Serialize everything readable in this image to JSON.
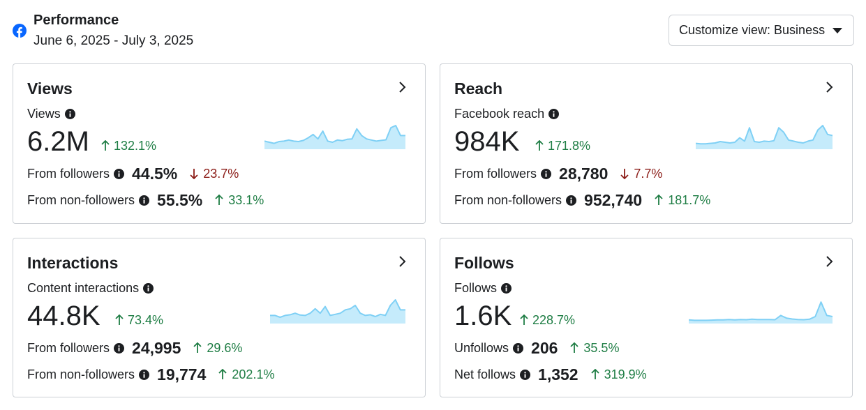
{
  "header": {
    "title": "Performance",
    "date_range": "June 6, 2025 - July 3, 2025",
    "customize_label": "Customize view: Business"
  },
  "colors": {
    "brand": "#0866ff",
    "up": "#1e7d44",
    "down": "#8c1d18",
    "spark_line": "#7fd0f5",
    "spark_fill": "#c5ebfb"
  },
  "cards": {
    "views": {
      "title": "Views",
      "metric_label": "Views",
      "value": "6.2M",
      "change": "132.1%",
      "change_dir": "up",
      "rows": [
        {
          "label": "From followers",
          "value": "44.5%",
          "change": "23.7%",
          "dir": "down"
        },
        {
          "label": "From non-followers",
          "value": "55.5%",
          "change": "33.1%",
          "dir": "up"
        }
      ],
      "sparkline": [
        0.3,
        0.25,
        0.2,
        0.28,
        0.3,
        0.35,
        0.3,
        0.28,
        0.33,
        0.45,
        0.6,
        0.4,
        0.75,
        0.3,
        0.25,
        0.35,
        0.32,
        0.38,
        0.4,
        0.85,
        0.55,
        0.4,
        0.35,
        0.3,
        0.33,
        0.36,
        0.9,
        1.0,
        0.55,
        0.55
      ]
    },
    "reach": {
      "title": "Reach",
      "metric_label": "Facebook reach",
      "value": "984K",
      "change": "171.8%",
      "change_dir": "up",
      "rows": [
        {
          "label": "From followers",
          "value": "28,780",
          "change": "7.7%",
          "dir": "down"
        },
        {
          "label": "From non-followers",
          "value": "952,740",
          "change": "181.7%",
          "dir": "up"
        }
      ],
      "sparkline": [
        0.2,
        0.18,
        0.18,
        0.2,
        0.22,
        0.28,
        0.25,
        0.22,
        0.25,
        0.45,
        0.3,
        0.9,
        0.28,
        0.25,
        0.3,
        0.28,
        0.32,
        0.9,
        0.7,
        0.35,
        0.3,
        0.25,
        0.22,
        0.3,
        0.35,
        0.8,
        1.0,
        0.6,
        0.55
      ]
    },
    "interactions": {
      "title": "Interactions",
      "metric_label": "Content interactions",
      "value": "44.8K",
      "change": "73.4%",
      "change_dir": "up",
      "rows": [
        {
          "label": "From followers",
          "value": "24,995",
          "change": "29.6%",
          "dir": "up"
        },
        {
          "label": "From non-followers",
          "value": "19,774",
          "change": "202.1%",
          "dir": "up"
        }
      ],
      "sparkline": [
        0.3,
        0.3,
        0.22,
        0.3,
        0.33,
        0.4,
        0.32,
        0.3,
        0.4,
        0.6,
        0.4,
        0.7,
        0.3,
        0.35,
        0.4,
        0.55,
        0.6,
        0.75,
        0.4,
        0.3,
        0.33,
        0.25,
        0.35,
        0.3,
        0.75,
        1.0,
        0.55,
        0.55
      ]
    },
    "follows": {
      "title": "Follows",
      "metric_label": "Follows",
      "value": "1.6K",
      "change": "228.7%",
      "change_dir": "up",
      "rows": [
        {
          "label": "Unfollows",
          "value": "206",
          "change": "35.5%",
          "dir": "up"
        },
        {
          "label": "Net follows",
          "value": "1,352",
          "change": "319.9%",
          "dir": "up"
        }
      ],
      "sparkline": [
        0.1,
        0.08,
        0.08,
        0.08,
        0.09,
        0.1,
        0.1,
        0.12,
        0.1,
        0.12,
        0.11,
        0.13,
        0.12,
        0.12,
        0.12,
        0.11,
        0.3,
        0.18,
        0.14,
        0.12,
        0.11,
        0.13,
        0.25,
        0.9,
        0.3,
        0.25
      ]
    }
  }
}
